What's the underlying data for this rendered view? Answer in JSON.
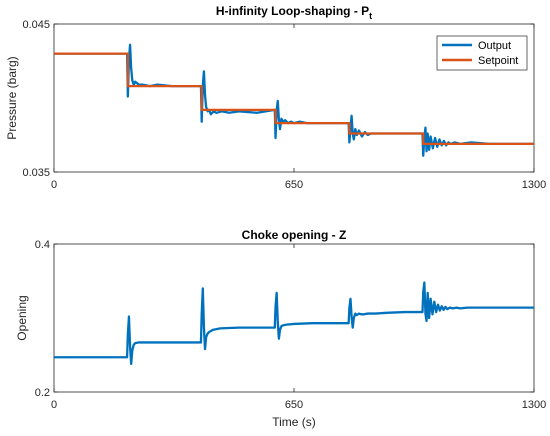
{
  "chart_data": [
    {
      "type": "line",
      "title": "H-infinity Loop-shaping - P",
      "title_subscript": "t",
      "xlabel": "",
      "ylabel": "Pressure (barg)",
      "xlim": [
        0,
        1300
      ],
      "ylim": [
        0.035,
        0.045
      ],
      "xticks": [
        "0",
        "650",
        "1300"
      ],
      "yticks": [
        "0.035",
        "0.045"
      ],
      "grid": false,
      "legend_location": "top-right",
      "steps": [
        200,
        400,
        600,
        800,
        1000
      ],
      "levels": [
        0.043,
        0.0408,
        0.0392,
        0.0383,
        0.0376,
        0.0369
      ],
      "series": [
        {
          "name": "Output",
          "color": "#0072BD",
          "x": [
            0,
            198,
            200,
            203,
            206,
            209,
            212,
            216,
            220,
            230,
            240,
            260,
            280,
            320,
            360,
            398,
            400,
            403,
            406,
            409,
            412,
            416,
            420,
            425,
            432,
            440,
            455,
            475,
            500,
            550,
            598,
            600,
            603,
            606,
            609,
            612,
            616,
            620,
            626,
            634,
            642,
            650,
            665,
            685,
            710,
            760,
            798,
            800,
            803,
            806,
            809,
            812,
            816,
            820,
            826,
            834,
            842,
            850,
            858,
            870,
            890,
            930,
            998,
            1000,
            1003,
            1006,
            1009,
            1012,
            1016,
            1020,
            1026,
            1032,
            1038,
            1044,
            1050,
            1056,
            1062,
            1068,
            1075,
            1085,
            1100,
            1130,
            1180,
            1250,
            1300
          ],
          "y": [
            0.043,
            0.043,
            0.0401,
            0.0426,
            0.0436,
            0.042,
            0.0412,
            0.0409,
            0.0411,
            0.0409,
            0.0409,
            0.0408,
            0.0409,
            0.0408,
            0.0408,
            0.0408,
            0.0384,
            0.0408,
            0.0418,
            0.0402,
            0.0394,
            0.0391,
            0.0392,
            0.0389,
            0.0391,
            0.039,
            0.0391,
            0.039,
            0.0391,
            0.039,
            0.0392,
            0.0373,
            0.0391,
            0.0398,
            0.0386,
            0.0379,
            0.0386,
            0.0384,
            0.0385,
            0.0383,
            0.0384,
            0.0383,
            0.0384,
            0.0383,
            0.0383,
            0.0383,
            0.0383,
            0.037,
            0.038,
            0.0388,
            0.0376,
            0.0372,
            0.0379,
            0.0375,
            0.0378,
            0.0374,
            0.0377,
            0.0375,
            0.0376,
            0.0376,
            0.0376,
            0.0376,
            0.0376,
            0.0361,
            0.0373,
            0.038,
            0.0364,
            0.0376,
            0.0365,
            0.0374,
            0.0366,
            0.0373,
            0.0367,
            0.0372,
            0.0368,
            0.0371,
            0.0368,
            0.037,
            0.0369,
            0.037,
            0.0369,
            0.037,
            0.0369,
            0.0369,
            0.0369
          ]
        },
        {
          "name": "Setpoint",
          "color": "#D95319",
          "x": [
            0,
            200,
            200,
            400,
            400,
            600,
            600,
            800,
            800,
            1000,
            1000,
            1300
          ],
          "y": [
            0.043,
            0.043,
            0.0408,
            0.0408,
            0.0392,
            0.0392,
            0.0383,
            0.0383,
            0.0376,
            0.0376,
            0.0369,
            0.0369
          ]
        }
      ]
    },
    {
      "type": "line",
      "title": "Choke opening - Z",
      "xlabel": "Time (s)",
      "ylabel": "Opening",
      "xlim": [
        0,
        1300
      ],
      "ylim": [
        0.2,
        0.4
      ],
      "xticks": [
        "0",
        "650",
        "1300"
      ],
      "yticks": [
        "0.2",
        "0.4"
      ],
      "grid": false,
      "series": [
        {
          "name": "",
          "color": "#0072BD",
          "x": [
            0,
            198,
            200,
            203,
            206,
            209,
            212,
            216,
            220,
            230,
            250,
            300,
            350,
            398,
            400,
            403,
            406,
            409,
            412,
            416,
            420,
            430,
            450,
            500,
            550,
            598,
            600,
            603,
            606,
            609,
            612,
            616,
            620,
            630,
            650,
            700,
            750,
            798,
            800,
            803,
            806,
            809,
            812,
            816,
            820,
            826,
            832,
            840,
            850,
            870,
            900,
            950,
            998,
            1000,
            1003,
            1006,
            1009,
            1012,
            1016,
            1020,
            1025,
            1030,
            1035,
            1040,
            1045,
            1050,
            1055,
            1060,
            1065,
            1072,
            1080,
            1090,
            1100,
            1120,
            1150,
            1200,
            1300
          ],
          "y": [
            0.247,
            0.247,
            0.278,
            0.302,
            0.262,
            0.238,
            0.256,
            0.264,
            0.266,
            0.267,
            0.267,
            0.267,
            0.267,
            0.267,
            0.305,
            0.34,
            0.288,
            0.258,
            0.274,
            0.279,
            0.281,
            0.284,
            0.286,
            0.287,
            0.287,
            0.287,
            0.315,
            0.334,
            0.296,
            0.272,
            0.284,
            0.289,
            0.29,
            0.291,
            0.292,
            0.293,
            0.293,
            0.293,
            0.314,
            0.326,
            0.302,
            0.287,
            0.3,
            0.306,
            0.304,
            0.306,
            0.305,
            0.305,
            0.306,
            0.306,
            0.307,
            0.308,
            0.308,
            0.335,
            0.348,
            0.306,
            0.296,
            0.334,
            0.3,
            0.326,
            0.305,
            0.322,
            0.308,
            0.318,
            0.31,
            0.316,
            0.311,
            0.315,
            0.312,
            0.314,
            0.313,
            0.314,
            0.313,
            0.314,
            0.314,
            0.314,
            0.314
          ]
        }
      ]
    }
  ]
}
